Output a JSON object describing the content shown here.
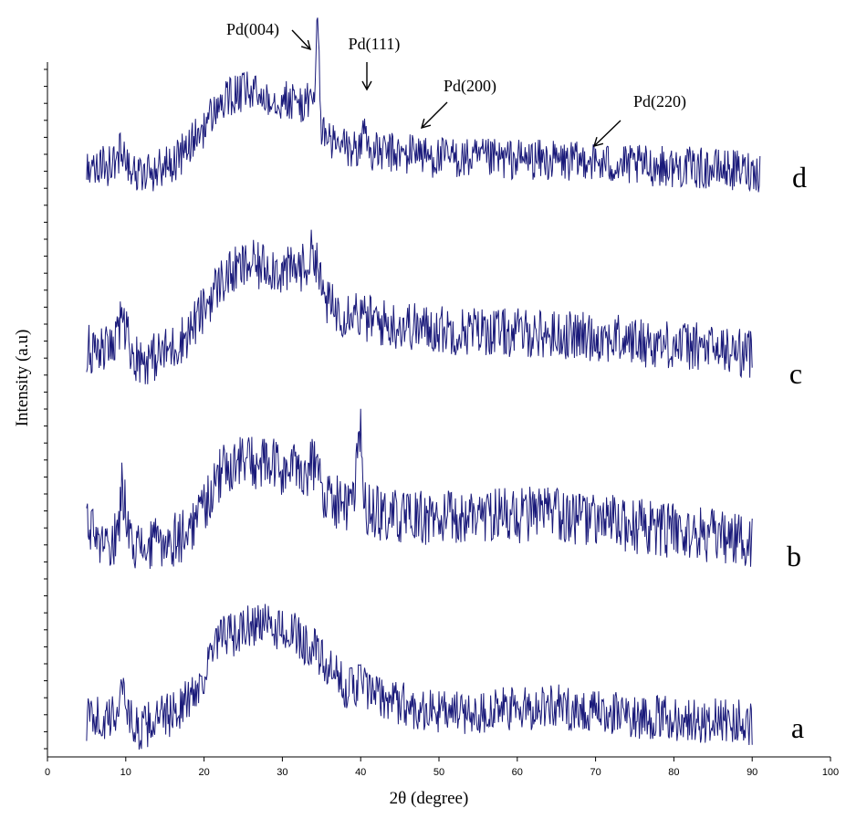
{
  "chart_data": {
    "type": "line",
    "xlabel": "2θ (degree)",
    "ylabel": "Intensity (a.u)",
    "xlim": [
      0,
      100
    ],
    "x_ticks": [
      0,
      10,
      20,
      30,
      40,
      50,
      60,
      70,
      80,
      90,
      100
    ],
    "y_ticks_labeled": false,
    "grid": false,
    "line_color": "#1a1a7a",
    "series": [
      {
        "name": "a",
        "x": [
          5,
          6,
          7,
          8,
          9,
          9.5,
          10,
          11,
          12,
          13,
          14,
          15,
          16,
          17,
          18,
          19,
          20,
          21,
          22,
          23,
          24,
          25,
          26,
          27,
          28,
          29,
          30,
          31,
          32,
          33,
          34,
          35,
          36,
          37,
          38,
          39,
          40,
          41,
          42,
          43,
          44,
          45,
          46,
          48,
          50,
          52,
          54,
          56,
          58,
          60,
          62,
          64,
          66,
          68,
          70,
          72,
          74,
          76,
          78,
          80,
          82,
          84,
          86,
          88,
          90
        ],
        "y": [
          0.3,
          0.5,
          0.2,
          0.3,
          0.6,
          1.5,
          0.8,
          0.1,
          0.0,
          0.2,
          0.3,
          0.4,
          0.5,
          0.7,
          0.9,
          1.2,
          1.6,
          2.2,
          2.6,
          2.8,
          2.7,
          2.9,
          3.0,
          3.1,
          3.0,
          2.9,
          3.0,
          2.8,
          2.7,
          2.5,
          2.4,
          2.0,
          1.7,
          1.5,
          1.3,
          1.2,
          1.5,
          1.1,
          1.0,
          0.9,
          0.9,
          0.8,
          0.7,
          0.6,
          0.55,
          0.5,
          0.5,
          0.55,
          0.6,
          0.6,
          0.65,
          0.75,
          0.65,
          0.6,
          0.5,
          0.5,
          0.45,
          0.4,
          0.35,
          0.35,
          0.3,
          0.25,
          0.3,
          0.25,
          0.2
        ]
      },
      {
        "name": "b",
        "x": [
          5,
          6,
          7,
          8,
          9,
          9.5,
          10,
          11,
          12,
          13,
          14,
          15,
          16,
          17,
          18,
          19,
          20,
          21,
          22,
          23,
          24,
          25,
          26,
          27,
          28,
          29,
          30,
          31,
          32,
          33,
          34,
          35,
          36,
          37,
          38,
          39,
          40,
          40.5,
          41,
          42,
          44,
          46,
          48,
          50,
          52,
          54,
          56,
          58,
          60,
          62,
          64,
          66,
          68,
          70,
          72,
          74,
          76,
          78,
          80,
          82,
          84,
          86,
          88,
          90
        ],
        "y": [
          0.7,
          0.4,
          0.2,
          0.3,
          0.5,
          1.6,
          1.2,
          0.3,
          0.2,
          0.2,
          0.3,
          0.3,
          0.4,
          0.5,
          0.6,
          0.9,
          1.2,
          1.6,
          1.9,
          2.1,
          2.2,
          2.3,
          2.2,
          2.1,
          2.2,
          2.1,
          2.0,
          2.0,
          2.1,
          2.0,
          2.2,
          1.6,
          1.4,
          1.3,
          1.2,
          1.1,
          3.0,
          1.2,
          1.1,
          1.0,
          0.95,
          0.9,
          0.9,
          0.9,
          0.9,
          0.95,
          1.0,
          1.0,
          0.95,
          1.0,
          1.0,
          0.95,
          0.9,
          0.85,
          0.8,
          0.75,
          0.7,
          0.65,
          0.6,
          0.55,
          0.5,
          0.45,
          0.4,
          0.35
        ]
      },
      {
        "name": "c",
        "x": [
          5,
          6,
          7,
          8,
          9,
          9.5,
          10,
          11,
          12,
          13,
          14,
          15,
          16,
          17,
          18,
          19,
          20,
          21,
          22,
          23,
          24,
          25,
          26,
          27,
          28,
          29,
          30,
          31,
          32,
          33,
          34,
          34.5,
          35,
          36,
          37,
          38,
          39,
          40,
          42,
          44,
          46,
          48,
          50,
          52,
          54,
          56,
          58,
          60,
          62,
          64,
          66,
          68,
          70,
          72,
          74,
          76,
          78,
          80,
          82,
          84,
          86,
          88,
          90
        ],
        "y": [
          0.4,
          0.3,
          0.3,
          0.4,
          0.6,
          1.4,
          0.9,
          0.2,
          0.1,
          0.1,
          0.2,
          0.3,
          0.4,
          0.6,
          0.8,
          1.1,
          1.4,
          1.8,
          2.1,
          2.3,
          2.4,
          2.5,
          2.6,
          2.5,
          2.6,
          2.5,
          2.4,
          2.4,
          2.5,
          2.5,
          3.0,
          2.6,
          1.9,
          1.5,
          1.4,
          1.3,
          1.5,
          1.2,
          1.1,
          1.0,
          1.0,
          0.9,
          0.9,
          0.85,
          0.85,
          0.85,
          0.8,
          0.8,
          0.8,
          0.75,
          0.75,
          0.7,
          0.7,
          0.65,
          0.6,
          0.55,
          0.5,
          0.5,
          0.45,
          0.4,
          0.35,
          0.3,
          0.25
        ]
      },
      {
        "name": "d",
        "x": [
          5,
          6,
          7,
          8,
          9,
          9.5,
          10,
          11,
          12,
          13,
          14,
          15,
          16,
          17,
          18,
          19,
          20,
          21,
          22,
          23,
          24,
          25,
          26,
          27,
          28,
          29,
          30,
          31,
          32,
          33,
          34,
          34.5,
          35,
          36,
          37,
          38,
          39,
          40,
          40.5,
          41,
          42,
          44,
          46,
          47,
          48,
          50,
          52,
          54,
          56,
          58,
          60,
          62,
          64,
          66,
          68,
          69,
          70,
          72,
          74,
          76,
          78,
          80,
          82,
          84,
          86,
          88,
          90,
          91
        ],
        "y": [
          0.4,
          0.4,
          0.3,
          0.3,
          0.5,
          1.0,
          0.6,
          0.1,
          0.0,
          0.1,
          0.2,
          0.3,
          0.4,
          0.6,
          0.9,
          1.2,
          1.5,
          1.9,
          2.2,
          2.4,
          2.5,
          2.6,
          2.6,
          2.5,
          2.5,
          2.4,
          2.4,
          2.3,
          2.3,
          2.2,
          2.4,
          4.8,
          1.4,
          1.1,
          0.9,
          0.9,
          0.8,
          0.8,
          1.8,
          0.8,
          0.7,
          0.7,
          0.6,
          0.9,
          0.6,
          0.55,
          0.55,
          0.5,
          0.5,
          0.5,
          0.5,
          0.5,
          0.45,
          0.45,
          0.4,
          0.6,
          0.35,
          0.35,
          0.3,
          0.3,
          0.3,
          0.25,
          0.25,
          0.2,
          0.2,
          0.15,
          0.15,
          0.1
        ]
      }
    ],
    "annotations": [
      {
        "text": "Pd(004)",
        "x": 34.5,
        "series": "d"
      },
      {
        "text": "Pd(111)",
        "x": 40.5,
        "series": "d"
      },
      {
        "text": "Pd(200)",
        "x": 47,
        "series": "d"
      },
      {
        "text": "Pd(220)",
        "x": 69,
        "series": "d"
      }
    ]
  }
}
